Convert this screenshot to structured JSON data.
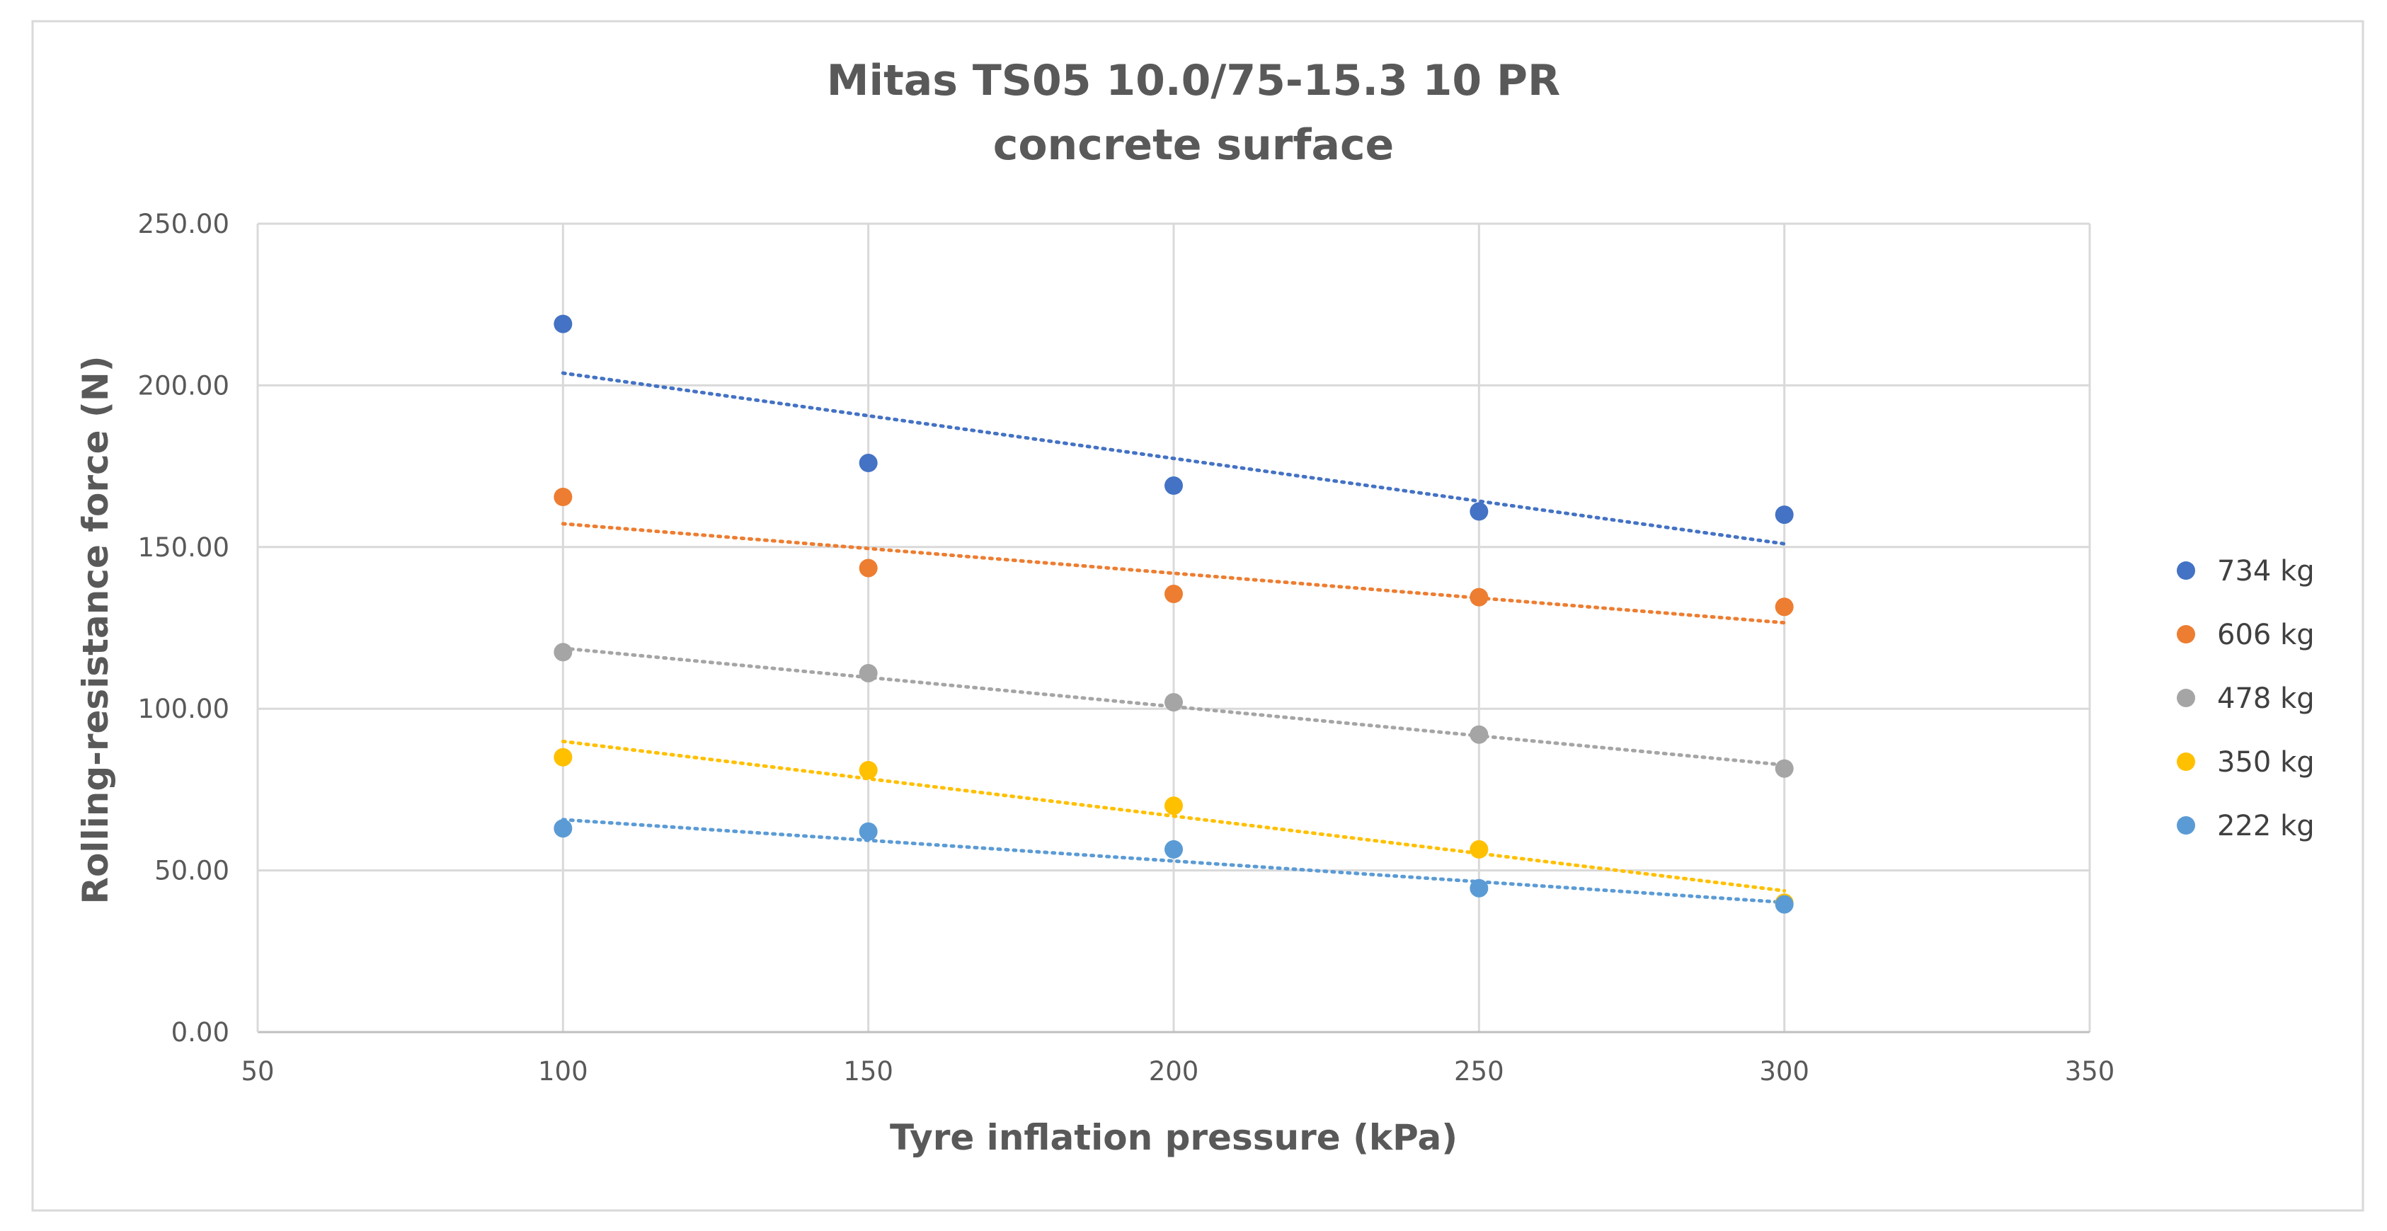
{
  "chart_data": {
    "type": "scatter",
    "title": "Mitas TS05 10.0/75-15.3 10 PR",
    "subtitle": "concrete surface",
    "xlabel": "Tyre inflation pressure (kPa)",
    "ylabel": "Rolling-resistance force (N)",
    "xlim": [
      50,
      350
    ],
    "ylim": [
      0,
      250
    ],
    "x_ticks": [
      "50",
      "100",
      "150",
      "200",
      "250",
      "300",
      "350"
    ],
    "y_ticks": [
      "0.00",
      "50.00",
      "100.00",
      "150.00",
      "200.00",
      "250.00"
    ],
    "grid": true,
    "legend_position": "right",
    "trendlines": "linear, dotted",
    "series": [
      {
        "name": "734 kg",
        "color": "#4472C4",
        "x": [
          100,
          150,
          200,
          250,
          300
        ],
        "y": [
          219,
          176,
          169,
          161,
          160
        ],
        "trend": [
          203.8,
          151.0
        ]
      },
      {
        "name": "606 kg",
        "color": "#ED7D31",
        "x": [
          100,
          150,
          200,
          250,
          300
        ],
        "y": [
          165.5,
          143.5,
          135.5,
          134.5,
          131.5
        ],
        "trend": [
          157.2,
          126.6
        ]
      },
      {
        "name": "478 kg",
        "color": "#A5A5A5",
        "x": [
          100,
          150,
          200,
          250,
          300
        ],
        "y": [
          117.5,
          111,
          102,
          92,
          81.5
        ],
        "trend": [
          118.7,
          82.6
        ]
      },
      {
        "name": "350 kg",
        "color": "#FFC000",
        "x": [
          100,
          150,
          200,
          250,
          300
        ],
        "y": [
          85,
          81,
          70,
          56.5,
          40
        ],
        "trend": [
          89.9,
          43.7
        ]
      },
      {
        "name": "222 kg",
        "color": "#5B9BD5",
        "x": [
          100,
          150,
          200,
          250,
          300
        ],
        "y": [
          63,
          62,
          56.5,
          44.5,
          39.5
        ],
        "trend": [
          65.7,
          40.1
        ]
      }
    ]
  }
}
